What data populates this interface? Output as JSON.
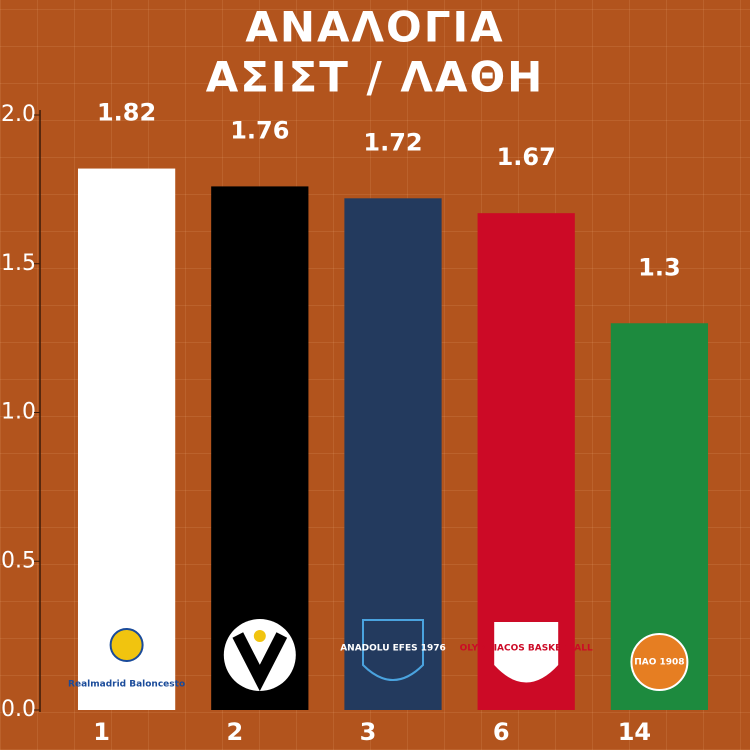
{
  "chart_data": {
    "type": "bar",
    "title": "ΑΝΑΛΟΓΙΑ",
    "subtitle": "ΑΣΙΣΤ / ΛΑΘΗ",
    "categories": [
      "1",
      "2",
      "3",
      "6",
      "14"
    ],
    "values": [
      1.82,
      1.76,
      1.72,
      1.67,
      1.3
    ],
    "colors": [
      "#ffffff",
      "#000000",
      "#233a5e",
      "#cc0a26",
      "#1d8a3e"
    ],
    "logo_texts": [
      "Realmadrid Baloncesto",
      null,
      "ANADOLU EFES 1976",
      "OLYMPIACOS BASKETBALL",
      "ΠΑΟ 1908"
    ],
    "ylim": [
      0,
      2
    ],
    "yticks": [
      {
        "value": 0,
        "label": "0.0"
      },
      {
        "value": 0.5,
        "label": "0.5"
      },
      {
        "value": 1,
        "label": "1.0"
      },
      {
        "value": 1.5,
        "label": "1.5"
      },
      {
        "value": 2,
        "label": "2.0"
      }
    ]
  }
}
